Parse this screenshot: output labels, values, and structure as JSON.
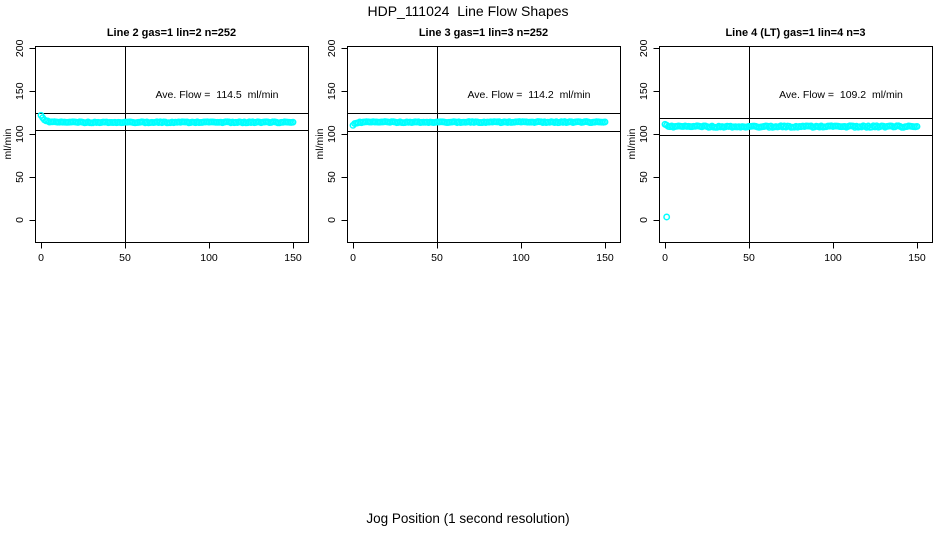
{
  "figure": {
    "title": "HDP_111024  Line Flow Shapes",
    "xlabel": "Jog Position (1 second resolution)",
    "background_color": "#ffffff",
    "point_color": "#00ffff",
    "axis_color": "#000000",
    "text_color": "#000000"
  },
  "chart_data": [
    {
      "type": "scatter",
      "title": "Line 2 gas=1 lin=2 n=252",
      "ylabel": "ml/min",
      "annotation": "Ave. Flow =  114.5  ml/min",
      "ave_flow_ml_min": 114.5,
      "n_points": 252,
      "x_ticks": [
        0,
        50,
        100,
        150
      ],
      "y_ticks": [
        0,
        50,
        100,
        150,
        200
      ],
      "xlim": [
        0,
        150
      ],
      "ylim": [
        0,
        200
      ],
      "grid": false,
      "vline_x": 50,
      "ref_line_high": 124.5,
      "ref_line_low": 104.5,
      "series": {
        "name": "flow-trace",
        "x_start": 0,
        "x_end": 150,
        "x_step": 1,
        "start_value": 121.5,
        "flat_value": 113.8,
        "decay_tau": 2.2,
        "jitter": 0.6
      },
      "key_points": [
        [
          0,
          121.5
        ],
        [
          3,
          116.6
        ],
        [
          6,
          114.6
        ],
        [
          10,
          113.9
        ],
        [
          50,
          113.8
        ],
        [
          100,
          113.8
        ],
        [
          150,
          113.8
        ]
      ],
      "outliers": []
    },
    {
      "type": "scatter",
      "title": "Line 3 gas=1 lin=3 n=252",
      "ylabel": "ml/min",
      "annotation": "Ave. Flow =  114.2  ml/min",
      "ave_flow_ml_min": 114.2,
      "n_points": 252,
      "x_ticks": [
        0,
        50,
        100,
        150
      ],
      "y_ticks": [
        0,
        50,
        100,
        150,
        200
      ],
      "xlim": [
        0,
        150
      ],
      "ylim": [
        0,
        200
      ],
      "grid": false,
      "vline_x": 50,
      "ref_line_high": 124.2,
      "ref_line_low": 104.2,
      "series": {
        "name": "flow-trace",
        "x_start": 0,
        "x_end": 150,
        "x_step": 1,
        "start_value": 109.8,
        "flat_value": 114.0,
        "decay_tau": 1.4,
        "jitter": 0.6
      },
      "key_points": [
        [
          0,
          109.8
        ],
        [
          1,
          112.0
        ],
        [
          3,
          113.5
        ],
        [
          5,
          113.9
        ],
        [
          50,
          114.0
        ],
        [
          100,
          114.0
        ],
        [
          150,
          114.0
        ]
      ],
      "outliers": []
    },
    {
      "type": "scatter",
      "title": "Line 4 (LT) gas=1 lin=4 n=3",
      "ylabel": "ml/min",
      "annotation": "Ave. Flow =  109.2  ml/min",
      "ave_flow_ml_min": 109.2,
      "n_points": 3,
      "x_ticks": [
        0,
        50,
        100,
        150
      ],
      "y_ticks": [
        0,
        50,
        100,
        150,
        200
      ],
      "xlim": [
        0,
        150
      ],
      "ylim": [
        0,
        200
      ],
      "grid": false,
      "vline_x": 50,
      "ref_line_high": 119.2,
      "ref_line_low": 99.2,
      "series": {
        "name": "flow-trace",
        "x_start": 0,
        "x_end": 150,
        "x_step": 1,
        "start_value": 110.8,
        "flat_value": 108.8,
        "decay_tau": 1.5,
        "jitter": 0.9
      },
      "key_points": [
        [
          1,
          3.5
        ],
        [
          0,
          110.8
        ],
        [
          50,
          108.8
        ],
        [
          100,
          108.8
        ],
        [
          150,
          108.8
        ]
      ],
      "outliers": [
        [
          1,
          3.5
        ]
      ]
    }
  ]
}
